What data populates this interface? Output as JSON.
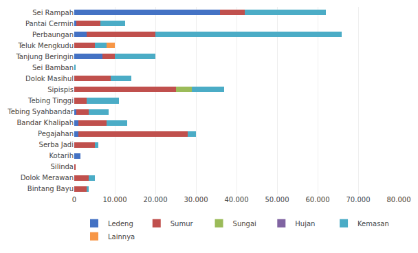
{
  "chart_data": {
    "type": "bar",
    "orientation": "horizontal",
    "stacked": true,
    "categories": [
      "Sei Rampah",
      "Pantai Cermin",
      "Perbaungan",
      "Teluk Mengkudu",
      "Tanjung Beringin",
      "Sei Bamban",
      "Dolok Masihul",
      "Sipispis",
      "Tebing Tinggi",
      "Tebing Syahbandar",
      "Bandar Khalipah",
      "Pegajahan",
      "Serba Jadi",
      "Kotarih",
      "Silinda",
      "Dolok Merawan",
      "Bintang Bayu"
    ],
    "series": [
      {
        "name": "Ledeng",
        "color": "#4472C4",
        "values": [
          36000,
          500,
          3000,
          0,
          7000,
          0,
          0,
          0,
          0,
          500,
          1000,
          1000,
          0,
          1500,
          0,
          0,
          0
        ]
      },
      {
        "name": "Sumur",
        "color": "#C0504D",
        "values": [
          6000,
          6000,
          17000,
          5000,
          3000,
          100,
          9000,
          25000,
          3000,
          3000,
          7000,
          27000,
          5000,
          0,
          200,
          3500,
          3000
        ]
      },
      {
        "name": "Sungai",
        "color": "#9BBB59",
        "values": [
          0,
          0,
          0,
          0,
          0,
          0,
          0,
          4000,
          0,
          0,
          0,
          0,
          0,
          0,
          0,
          0,
          0
        ]
      },
      {
        "name": "Hujan",
        "color": "#8064A2",
        "values": [
          0,
          0,
          0,
          0,
          0,
          0,
          0,
          0,
          0,
          0,
          0,
          0,
          0,
          0,
          0,
          0,
          0
        ]
      },
      {
        "name": "Kemasan",
        "color": "#4BACC6",
        "values": [
          20000,
          6000,
          46000,
          3000,
          10000,
          100,
          5000,
          8000,
          8000,
          5000,
          5000,
          2000,
          1000,
          0,
          0,
          1500,
          500
        ]
      },
      {
        "name": "Lainnya",
        "color": "#F79646",
        "values": [
          0,
          0,
          0,
          2000,
          0,
          0,
          0,
          0,
          0,
          0,
          0,
          0,
          0,
          0,
          0,
          0,
          0
        ]
      }
    ],
    "xlim": [
      0,
      80000
    ],
    "xticks": [
      0,
      {
        "value": 10000,
        "label": "10.000"
      },
      {
        "value": 20000,
        "label": "20.000"
      },
      {
        "value": 30000,
        "label": "30.000"
      },
      {
        "value": 40000,
        "label": "40.000"
      },
      {
        "value": 50000,
        "label": "50.000"
      },
      {
        "value": 60000,
        "label": "60.000"
      },
      {
        "value": 70000,
        "label": "70.000"
      },
      {
        "value": 80000,
        "label": "80.000"
      }
    ],
    "grid": true,
    "legend": "bottom"
  }
}
